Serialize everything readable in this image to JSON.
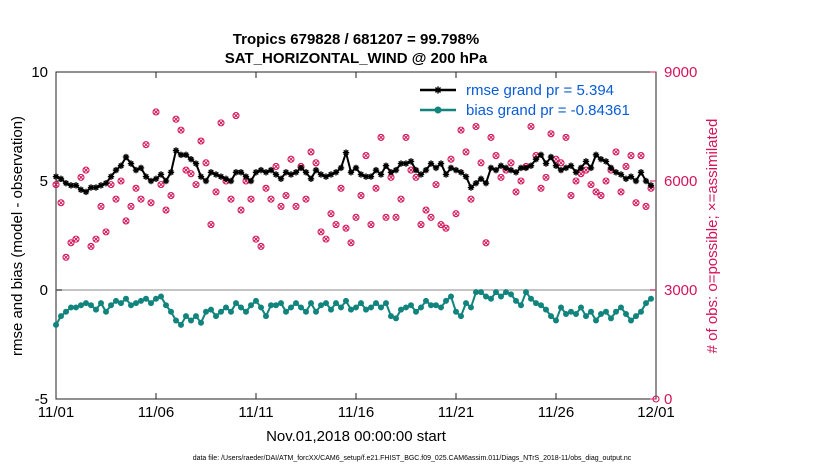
{
  "chart_data": {
    "type": "line",
    "title_line1": "Tropics 679828 / 681207 = 99.798%",
    "title_line2": "SAT_HORIZONTAL_WIND @ 200 hPa",
    "xlabel": "Nov.01,2018 00:00:00 start",
    "ylabel": "rmse and bias (model - observation)",
    "y2label": "# of obs: o=possible; ×=assimilated",
    "footnote": "data file: /Users/raeder/DAI/ATM_forcXX/CAM6_setup/f.e21.FHIST_BGC.f09_025.CAM6assim.011/Diags_NTrS_2018-11/obs_diag_output.nc",
    "xlim": [
      0,
      30
    ],
    "ylim": [
      -5,
      10
    ],
    "y2lim": [
      0,
      9000
    ],
    "xticks": [
      0,
      5,
      10,
      15,
      20,
      25,
      30
    ],
    "xtick_labels": [
      "11/01",
      "11/06",
      "11/11",
      "11/16",
      "11/21",
      "11/26",
      "12/01"
    ],
    "yticks": [
      -5,
      0,
      5,
      10
    ],
    "ytick_labels": [
      "-5",
      "0",
      "5",
      "10"
    ],
    "y2ticks": [
      0,
      3000,
      6000,
      9000
    ],
    "y2tick_labels": [
      "0",
      "3000",
      "6000",
      "9000"
    ],
    "zero_line": 0,
    "series": [
      {
        "name": "rmse grand pr = 5.394",
        "color": "#000000",
        "marker": "star",
        "x": [
          0.0,
          0.25,
          0.5,
          0.75,
          1.0,
          1.25,
          1.5,
          1.75,
          2.0,
          2.25,
          2.5,
          2.75,
          3.0,
          3.25,
          3.5,
          3.75,
          4.0,
          4.25,
          4.5,
          4.75,
          5.0,
          5.25,
          5.5,
          5.75,
          6.0,
          6.25,
          6.5,
          6.75,
          7.0,
          7.25,
          7.5,
          7.75,
          8.0,
          8.25,
          8.5,
          8.75,
          9.0,
          9.25,
          9.5,
          9.75,
          10.0,
          10.25,
          10.5,
          10.75,
          11.0,
          11.25,
          11.5,
          11.75,
          12.0,
          12.25,
          12.5,
          12.75,
          13.0,
          13.25,
          13.5,
          13.75,
          14.0,
          14.25,
          14.5,
          14.75,
          15.0,
          15.25,
          15.5,
          15.75,
          16.0,
          16.25,
          16.5,
          16.75,
          17.0,
          17.25,
          17.5,
          17.75,
          18.0,
          18.25,
          18.5,
          18.75,
          19.0,
          19.25,
          19.5,
          19.75,
          20.0,
          20.25,
          20.5,
          20.75,
          21.0,
          21.25,
          21.5,
          21.75,
          22.0,
          22.25,
          22.5,
          22.75,
          23.0,
          23.25,
          23.5,
          23.75,
          24.0,
          24.25,
          24.5,
          24.75,
          25.0,
          25.25,
          25.5,
          25.75,
          26.0,
          26.25,
          26.5,
          26.75,
          27.0,
          27.25,
          27.5,
          27.75,
          28.0,
          28.25,
          28.5,
          28.75,
          29.0,
          29.25,
          29.5,
          29.75
        ],
        "values": [
          5.2,
          5.1,
          4.9,
          4.8,
          4.8,
          4.6,
          4.5,
          4.7,
          4.7,
          4.8,
          4.9,
          5.2,
          5.5,
          5.7,
          6.1,
          5.8,
          5.5,
          5.6,
          5.2,
          5.0,
          5.1,
          5.3,
          5.0,
          5.4,
          6.4,
          6.2,
          6.2,
          6.0,
          5.8,
          5.2,
          5.0,
          5.4,
          5.3,
          5.2,
          5.1,
          5.0,
          5.4,
          5.4,
          5.2,
          5.0,
          5.4,
          5.5,
          5.4,
          5.5,
          5.3,
          5.1,
          5.4,
          5.3,
          5.4,
          5.6,
          5.4,
          5.1,
          5.5,
          5.3,
          5.2,
          5.3,
          5.4,
          5.6,
          6.3,
          5.4,
          5.6,
          5.3,
          5.2,
          5.2,
          5.5,
          5.3,
          5.7,
          5.4,
          5.5,
          5.8,
          5.8,
          5.9,
          5.5,
          5.3,
          5.5,
          5.8,
          5.6,
          5.8,
          5.3,
          5.6,
          5.5,
          5.4,
          5.2,
          4.7,
          4.9,
          5.1,
          4.9,
          5.6,
          5.5,
          5.7,
          5.6,
          5.5,
          5.4,
          5.6,
          5.6,
          5.7,
          6.0,
          6.2,
          5.8,
          6.1,
          5.7,
          5.5,
          5.6,
          5.7,
          5.4,
          5.6,
          5.9,
          5.6,
          6.2,
          6.0,
          5.9,
          5.6,
          5.4,
          5.3,
          5.1,
          5.2,
          5.0,
          5.4,
          5.0,
          4.8
        ]
      },
      {
        "name": "bias grand pr = -0.84361",
        "color": "#12847e",
        "marker": "circle",
        "x": [
          0.0,
          0.25,
          0.5,
          0.75,
          1.0,
          1.25,
          1.5,
          1.75,
          2.0,
          2.25,
          2.5,
          2.75,
          3.0,
          3.25,
          3.5,
          3.75,
          4.0,
          4.25,
          4.5,
          4.75,
          5.0,
          5.25,
          5.5,
          5.75,
          6.0,
          6.25,
          6.5,
          6.75,
          7.0,
          7.25,
          7.5,
          7.75,
          8.0,
          8.25,
          8.5,
          8.75,
          9.0,
          9.25,
          9.5,
          9.75,
          10.0,
          10.25,
          10.5,
          10.75,
          11.0,
          11.25,
          11.5,
          11.75,
          12.0,
          12.25,
          12.5,
          12.75,
          13.0,
          13.25,
          13.5,
          13.75,
          14.0,
          14.25,
          14.5,
          14.75,
          15.0,
          15.25,
          15.5,
          15.75,
          16.0,
          16.25,
          16.5,
          16.75,
          17.0,
          17.25,
          17.5,
          17.75,
          18.0,
          18.25,
          18.5,
          18.75,
          19.0,
          19.25,
          19.5,
          19.75,
          20.0,
          20.25,
          20.5,
          20.75,
          21.0,
          21.25,
          21.5,
          21.75,
          22.0,
          22.25,
          22.5,
          22.75,
          23.0,
          23.25,
          23.5,
          23.75,
          24.0,
          24.25,
          24.5,
          24.75,
          25.0,
          25.25,
          25.5,
          25.75,
          26.0,
          26.25,
          26.5,
          26.75,
          27.0,
          27.25,
          27.5,
          27.75,
          28.0,
          28.25,
          28.5,
          28.75,
          29.0,
          29.25,
          29.5,
          29.75
        ],
        "values": [
          -1.6,
          -1.2,
          -1.0,
          -0.8,
          -0.8,
          -0.7,
          -0.6,
          -0.7,
          -0.9,
          -0.6,
          -1.0,
          -0.7,
          -0.5,
          -0.6,
          -0.4,
          -0.7,
          -0.6,
          -0.5,
          -0.4,
          -0.6,
          -0.4,
          -0.3,
          -0.7,
          -1.0,
          -1.4,
          -1.6,
          -1.2,
          -1.4,
          -1.2,
          -1.5,
          -1.0,
          -0.9,
          -1.2,
          -1.0,
          -0.8,
          -1.0,
          -0.6,
          -0.8,
          -1.0,
          -0.7,
          -0.5,
          -0.8,
          -1.2,
          -0.7,
          -0.7,
          -0.6,
          -1.0,
          -0.8,
          -0.6,
          -0.8,
          -1.0,
          -0.6,
          -1.0,
          -0.7,
          -0.6,
          -0.9,
          -0.6,
          -0.8,
          -0.5,
          -0.9,
          -0.8,
          -0.6,
          -0.9,
          -0.8,
          -0.6,
          -0.8,
          -0.6,
          -1.2,
          -1.3,
          -0.9,
          -0.8,
          -0.7,
          -1.0,
          -0.8,
          -0.5,
          -0.7,
          -0.7,
          -0.8,
          -0.5,
          -0.3,
          -1.0,
          -1.2,
          -0.6,
          -0.8,
          -0.1,
          -0.1,
          -0.3,
          -0.4,
          -0.1,
          -0.3,
          -0.1,
          -0.2,
          -0.5,
          -0.7,
          -0.1,
          -0.4,
          -0.6,
          -0.7,
          -0.9,
          -1.2,
          -1.4,
          -0.8,
          -1.1,
          -1.0,
          -1.1,
          -0.8,
          -1.2,
          -1.0,
          -1.4,
          -1.1,
          -1.0,
          -1.3,
          -1.0,
          -0.8,
          -1.1,
          -1.4,
          -1.2,
          -1.0,
          -0.6,
          -0.4
        ]
      },
      {
        "name": "observations possible/assimilated",
        "axis": "right",
        "color": "#d4145a",
        "marker": "circle-x",
        "x": [
          0.0,
          0.25,
          0.5,
          0.75,
          1.0,
          1.25,
          1.5,
          1.75,
          2.0,
          2.25,
          2.5,
          2.75,
          3.0,
          3.25,
          3.5,
          3.75,
          4.0,
          4.25,
          4.5,
          4.75,
          5.0,
          5.25,
          5.5,
          5.75,
          6.0,
          6.25,
          6.5,
          6.75,
          7.0,
          7.25,
          7.5,
          7.75,
          8.0,
          8.25,
          8.5,
          8.75,
          9.0,
          9.25,
          9.5,
          9.75,
          10.0,
          10.25,
          10.5,
          10.75,
          11.0,
          11.25,
          11.5,
          11.75,
          12.0,
          12.25,
          12.5,
          12.75,
          13.0,
          13.25,
          13.5,
          13.75,
          14.0,
          14.25,
          14.5,
          14.75,
          15.0,
          15.25,
          15.5,
          15.75,
          16.0,
          16.25,
          16.5,
          16.75,
          17.0,
          17.25,
          17.5,
          17.75,
          18.0,
          18.25,
          18.5,
          18.75,
          19.0,
          19.25,
          19.5,
          19.75,
          20.0,
          20.25,
          20.5,
          20.75,
          21.0,
          21.25,
          21.5,
          21.75,
          22.0,
          22.25,
          22.5,
          22.75,
          23.0,
          23.25,
          23.5,
          23.75,
          24.0,
          24.25,
          24.5,
          24.75,
          25.0,
          25.25,
          25.5,
          25.75,
          26.0,
          26.25,
          26.5,
          26.75,
          27.0,
          27.25,
          27.5,
          27.75,
          28.0,
          28.25,
          28.5,
          28.75,
          29.0,
          29.25,
          29.5,
          29.75
        ],
        "values": [
          5900,
          5400,
          3900,
          4300,
          4400,
          6100,
          6300,
          4200,
          4400,
          5300,
          4600,
          5900,
          5500,
          6000,
          4900,
          5300,
          5800,
          5500,
          7000,
          5400,
          7900,
          5900,
          5200,
          5600,
          7700,
          7400,
          6300,
          6200,
          5900,
          7100,
          6500,
          4800,
          5700,
          7600,
          6000,
          5500,
          7800,
          5200,
          6000,
          5500,
          4400,
          4200,
          5800,
          5500,
          6400,
          5300,
          5600,
          6600,
          5300,
          6400,
          5500,
          6800,
          6500,
          4600,
          4400,
          5100,
          4800,
          5800,
          4700,
          4300,
          5000,
          5600,
          6700,
          4800,
          5800,
          7200,
          5000,
          6100,
          5000,
          5500,
          7200,
          6300,
          6100,
          4800,
          5200,
          5000,
          5900,
          4800,
          4700,
          6600,
          5100,
          7400,
          6800,
          5500,
          7500,
          6500,
          4300,
          7200,
          6700,
          6100,
          6300,
          6500,
          5700,
          6000,
          6400,
          7500,
          6700,
          5800,
          6100,
          7300,
          6600,
          6500,
          7200,
          5600,
          6000,
          6200,
          6300,
          5900,
          5700,
          5600,
          6000,
          6300,
          6800,
          5700,
          6400,
          6700,
          5400,
          6700,
          5300,
          5800
        ]
      }
    ]
  }
}
